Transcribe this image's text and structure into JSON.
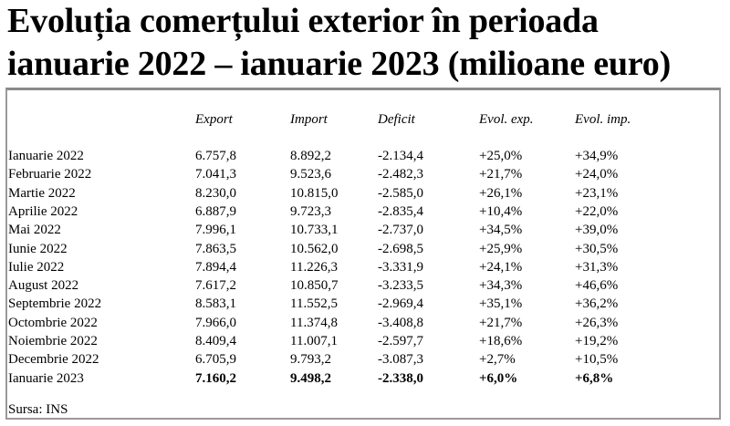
{
  "title": {
    "line1": "Evoluția comerțului exterior în perioada",
    "line2": "ianuarie 2022 – ianuarie 2023 (milioane euro)"
  },
  "table": {
    "headers": [
      "Export",
      "Import",
      "Deficit",
      "Evol. exp.",
      "Evol. imp."
    ],
    "rows": [
      {
        "label": "Ianuarie 2022",
        "export": "6.757,8",
        "import": "8.892,2",
        "deficit": "-2.134,4",
        "evol_exp": "+25,0%",
        "evol_imp": "+34,9%"
      },
      {
        "label": "Februarie 2022",
        "export": "7.041,3",
        "import": "9.523,6",
        "deficit": "-2.482,3",
        "evol_exp": "+21,7%",
        "evol_imp": "+24,0%"
      },
      {
        "label": "Martie 2022",
        "export": "8.230,0",
        "import": "10.815,0",
        "deficit": "-2.585,0",
        "evol_exp": "+26,1%",
        "evol_imp": "+23,1%"
      },
      {
        "label": "Aprilie 2022",
        "export": "6.887,9",
        "import": "9.723,3",
        "deficit": "-2.835,4",
        "evol_exp": "+10,4%",
        "evol_imp": "+22,0%"
      },
      {
        "label": "Mai 2022",
        "export": "7.996,1",
        "import": "10.733,1",
        "deficit": "-2.737,0",
        "evol_exp": "+34,5%",
        "evol_imp": "+39,0%"
      },
      {
        "label": "Iunie 2022",
        "export": "7.863,5",
        "import": "10.562,0",
        "deficit": "-2.698,5",
        "evol_exp": "+25,9%",
        "evol_imp": "+30,5%"
      },
      {
        "label": "Iulie 2022",
        "export": "7.894,4",
        "import": "11.226,3",
        "deficit": "-3.331,9",
        "evol_exp": "+24,1%",
        "evol_imp": "+31,3%"
      },
      {
        "label": "August 2022",
        "export": "7.617,2",
        "import": "10.850,7",
        "deficit": "-3.233,5",
        "evol_exp": "+34,3%",
        "evol_imp": "+46,6%"
      },
      {
        "label": "Septembrie 2022",
        "export": "8.583,1",
        "import": "11.552,5",
        "deficit": "-2.969,4",
        "evol_exp": "+35,1%",
        "evol_imp": "+36,2%"
      },
      {
        "label": "Octombrie 2022",
        "export": "7.966,0",
        "import": "11.374,8",
        "deficit": "-3.408,8",
        "evol_exp": "+21,7%",
        "evol_imp": "+26,3%"
      },
      {
        "label": "Noiembrie 2022",
        "export": "8.409,4",
        "import": "11.007,1",
        "deficit": "-2.597,7",
        "evol_exp": "+18,6%",
        "evol_imp": "+19,2%"
      },
      {
        "label": "Decembrie 2022",
        "export": "6.705,9",
        "import": "9.793,2",
        "deficit": "-3.087,3",
        "evol_exp": "+2,7%",
        "evol_imp": "+10,5%"
      },
      {
        "label": "Ianuarie 2023",
        "export": "7.160,2",
        "import": "9.498,2",
        "deficit": "-2.338,0",
        "evol_exp": "+6,0%",
        "evol_imp": "+6,8%",
        "bold": true
      }
    ]
  },
  "source": "Sursa: INS"
}
